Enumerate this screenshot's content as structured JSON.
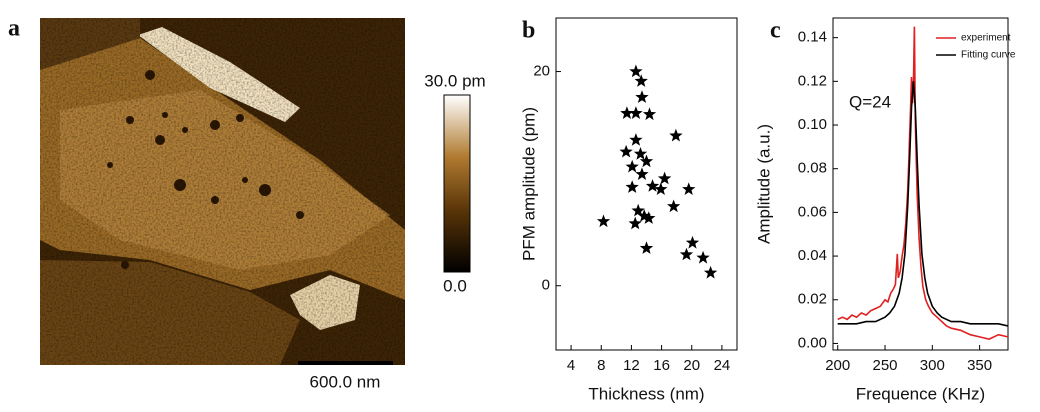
{
  "image_panel": {
    "label": "a",
    "colorbar_max": "30.0 pm",
    "colorbar_min": "0.0",
    "scale_bar": "600.0 nm"
  },
  "chart_data": [
    {
      "type": "scatter",
      "panel_label": "b",
      "x_label": "Thickness (nm)",
      "y_label": "PFM amplitude (pm)",
      "x": [
        8.3,
        12.6,
        13.3,
        13.4,
        11.4,
        12.6,
        14.4,
        11.3,
        12.6,
        13.2,
        14.0,
        12.1,
        13.4,
        17.9,
        16.4,
        14.8,
        15.9,
        12.1,
        19.6,
        17.6,
        12.9,
        13.7,
        14.3,
        12.5,
        14.0,
        20.1,
        19.3,
        21.5,
        22.5
      ],
      "values": [
        6.0,
        20.0,
        19.1,
        17.6,
        16.1,
        16.1,
        16.0,
        12.5,
        13.6,
        12.3,
        11.6,
        11.1,
        10.4,
        14.0,
        10.0,
        9.3,
        9.0,
        9.2,
        9.0,
        7.4,
        7.0,
        6.5,
        6.3,
        5.8,
        3.5,
        4.0,
        2.9,
        2.6,
        1.2
      ],
      "color": "#000000",
      "xlim": [
        2,
        26
      ],
      "xticks": [
        4,
        8,
        12,
        16,
        20,
        24
      ],
      "ylim": [
        -6,
        25
      ],
      "yticks": [
        0,
        20
      ]
    },
    {
      "type": "line",
      "panel_label": "c",
      "x_label": "Frequence (KHz)",
      "y_label": "Amplitude (a.u.)",
      "annotation": "Q=24",
      "legend": "upper right",
      "series": [
        {
          "name": "experiment",
          "color": "#e02020",
          "x": [
            200,
            205,
            210,
            215,
            220,
            225,
            230,
            235,
            240,
            245,
            250,
            253,
            256,
            259,
            261,
            263,
            264,
            266,
            268,
            270,
            272,
            274,
            275,
            276,
            277,
            278,
            279,
            280,
            281,
            282,
            283,
            284,
            286,
            288,
            290,
            293,
            296,
            300,
            305,
            310,
            315,
            320,
            330,
            340,
            350,
            360,
            370,
            380
          ],
          "values": [
            0.011,
            0.012,
            0.011,
            0.013,
            0.012,
            0.014,
            0.013,
            0.015,
            0.016,
            0.017,
            0.02,
            0.019,
            0.023,
            0.025,
            0.027,
            0.041,
            0.03,
            0.033,
            0.04,
            0.045,
            0.055,
            0.07,
            0.082,
            0.095,
            0.108,
            0.122,
            0.11,
            0.118,
            0.145,
            0.102,
            0.085,
            0.068,
            0.048,
            0.035,
            0.026,
            0.02,
            0.017,
            0.014,
            0.012,
            0.01,
            0.008,
            0.007,
            0.006,
            0.004,
            0.003,
            0.002,
            0.004,
            0.003
          ]
        },
        {
          "name": "Fitting curve",
          "color": "#000000",
          "x": [
            200,
            210,
            220,
            230,
            240,
            250,
            255,
            260,
            265,
            268,
            271,
            274,
            276,
            278,
            280,
            282,
            284,
            286,
            289,
            292,
            295,
            300,
            305,
            310,
            320,
            330,
            340,
            350,
            360,
            370,
            380
          ],
          "values": [
            0.009,
            0.009,
            0.009,
            0.01,
            0.01,
            0.012,
            0.014,
            0.017,
            0.023,
            0.03,
            0.041,
            0.063,
            0.084,
            0.108,
            0.12,
            0.108,
            0.084,
            0.063,
            0.041,
            0.03,
            0.023,
            0.017,
            0.014,
            0.012,
            0.01,
            0.01,
            0.009,
            0.009,
            0.009,
            0.009,
            0.008
          ]
        }
      ],
      "xlim": [
        195,
        380
      ],
      "xticks": [
        200,
        250,
        300,
        350
      ],
      "ylim": [
        -0.003,
        0.149
      ],
      "yticks": [
        {
          "value": 0,
          "label": "0.00"
        },
        0.02,
        0.04,
        0.06,
        0.08,
        {
          "value": 0.1,
          "label": "0.10"
        },
        0.12,
        0.14
      ]
    }
  ]
}
